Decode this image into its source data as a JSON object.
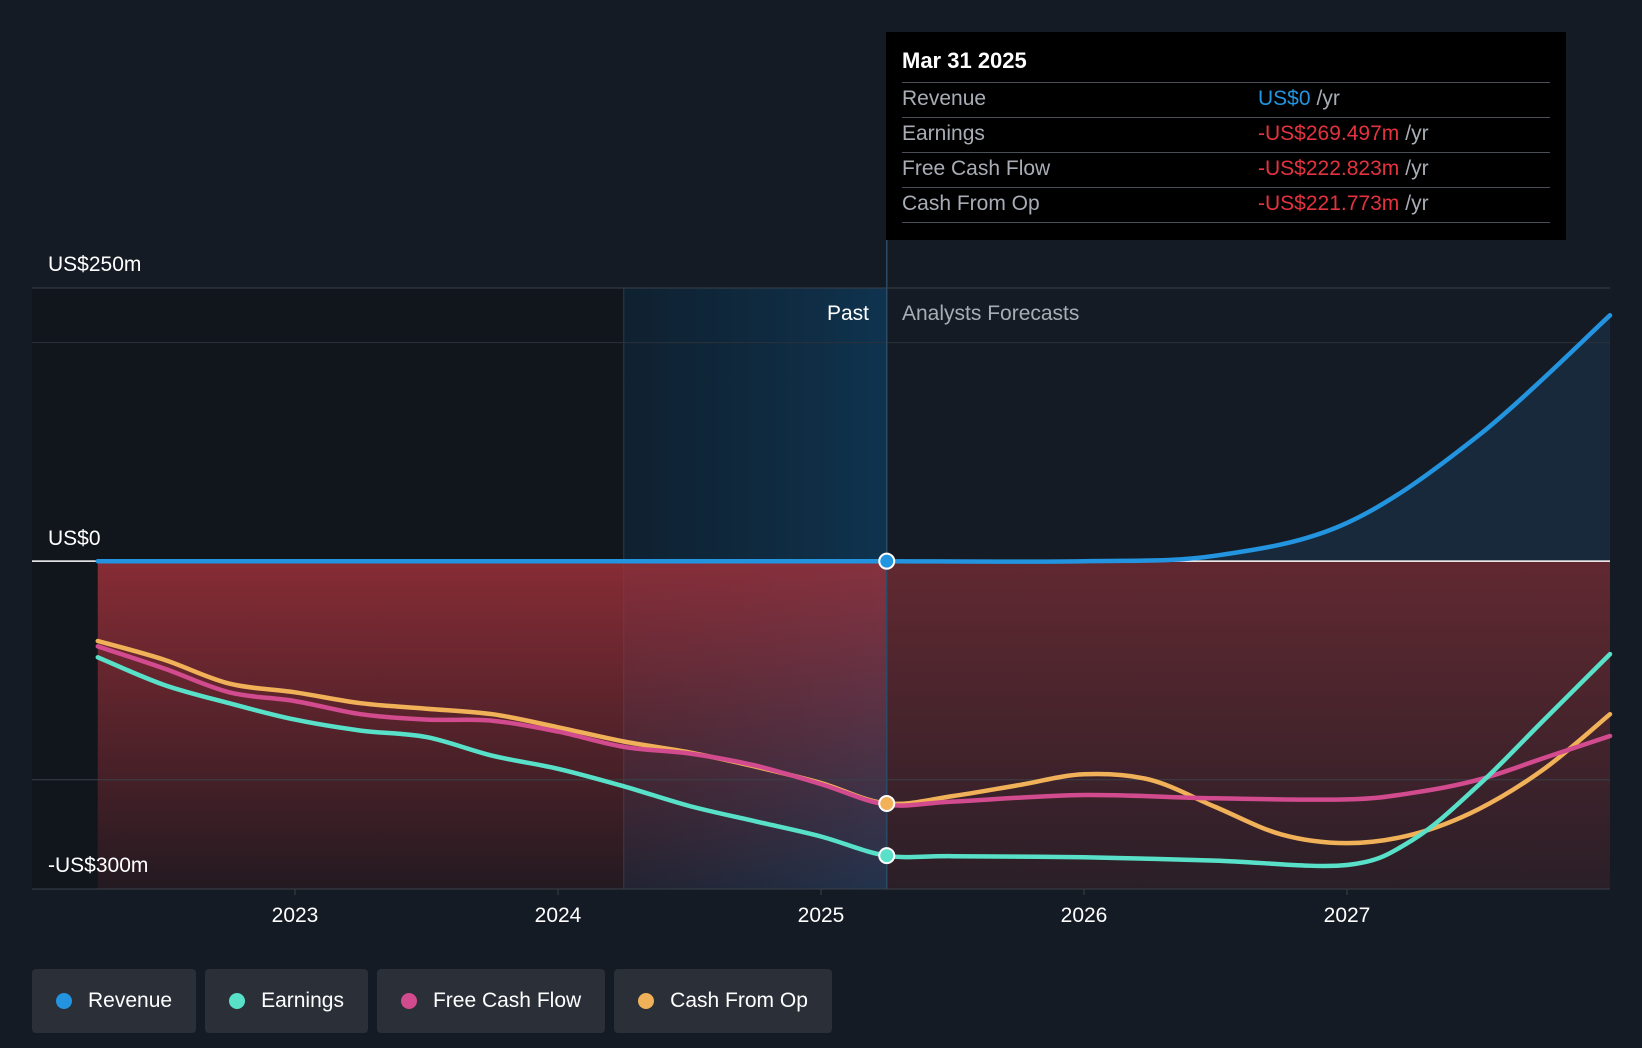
{
  "chart_data": {
    "type": "line",
    "x_unit": "year",
    "xlim": [
      2022.0,
      2028.0
    ],
    "ylim": [
      -300,
      250
    ],
    "y_axis_labels": [
      "US$250m",
      "US$0",
      "-US$300m"
    ],
    "x_ticks": [
      "2023",
      "2024",
      "2025",
      "2026",
      "2027"
    ],
    "past_label": "Past",
    "forecast_label": "Analysts Forecasts",
    "divider_x": 2025.25,
    "series": [
      {
        "name": "Revenue",
        "color": "#2394df",
        "x": [
          2022.25,
          2023.0,
          2024.0,
          2025.0,
          2025.25,
          2026.0,
          2026.5,
          2027.0,
          2027.5,
          2028.0
        ],
        "y": [
          0,
          0,
          0,
          0,
          0,
          0,
          5,
          35,
          115,
          225
        ]
      },
      {
        "name": "Earnings",
        "color": "#58e1c8",
        "x": [
          2022.25,
          2022.5,
          2022.75,
          2023.0,
          2023.25,
          2023.5,
          2023.75,
          2024.0,
          2024.25,
          2024.5,
          2024.75,
          2025.0,
          2025.25,
          2025.5,
          2026.0,
          2026.5,
          2027.0,
          2027.25,
          2027.5,
          2027.75,
          2028.0
        ],
        "y": [
          -88,
          -113,
          -130,
          -145,
          -155,
          -161,
          -178,
          -190,
          -206,
          -224,
          -238,
          -252,
          -269.5,
          -270,
          -271,
          -274,
          -278,
          -255,
          -205,
          -145,
          -85
        ]
      },
      {
        "name": "Free Cash Flow",
        "color": "#d24b8f",
        "x": [
          2022.25,
          2022.5,
          2022.75,
          2023.0,
          2023.25,
          2023.5,
          2023.75,
          2024.0,
          2024.25,
          2024.5,
          2024.75,
          2025.0,
          2025.25,
          2025.5,
          2026.0,
          2026.5,
          2027.0,
          2027.25,
          2027.5,
          2027.75,
          2028.0
        ],
        "y": [
          -78,
          -98,
          -120,
          -128,
          -140,
          -145,
          -146,
          -156,
          -170,
          -176,
          -187,
          -204,
          -222.8,
          -220,
          -214,
          -217,
          -218,
          -212,
          -200,
          -180,
          -160
        ]
      },
      {
        "name": "Cash From Op",
        "color": "#f0b158",
        "x": [
          2022.25,
          2022.5,
          2022.75,
          2023.0,
          2023.25,
          2023.5,
          2023.75,
          2024.0,
          2024.25,
          2024.5,
          2024.75,
          2025.0,
          2025.25,
          2025.5,
          2025.75,
          2026.0,
          2026.25,
          2026.5,
          2026.75,
          2027.0,
          2027.25,
          2027.5,
          2027.75,
          2028.0
        ],
        "y": [
          -73,
          -90,
          -112,
          -120,
          -130,
          -135,
          -140,
          -152,
          -165,
          -175,
          -188,
          -203,
          -221.8,
          -215,
          -205,
          -195,
          -200,
          -225,
          -250,
          -258,
          -250,
          -227,
          -190,
          -140
        ]
      }
    ]
  },
  "tooltip": {
    "date": "Mar 31 2025",
    "rows": [
      {
        "label": "Revenue",
        "value": "US$0",
        "unit": "/yr"
      },
      {
        "label": "Earnings",
        "value": "-US$269.497m",
        "unit": "/yr"
      },
      {
        "label": "Free Cash Flow",
        "value": "-US$222.823m",
        "unit": "/yr"
      },
      {
        "label": "Cash From Op",
        "value": "-US$221.773m",
        "unit": "/yr"
      }
    ]
  },
  "legend": [
    {
      "label": "Revenue",
      "color": "#2394df"
    },
    {
      "label": "Earnings",
      "color": "#58e1c8"
    },
    {
      "label": "Free Cash Flow",
      "color": "#d24b8f"
    },
    {
      "label": "Cash From Op",
      "color": "#f0b158"
    }
  ]
}
